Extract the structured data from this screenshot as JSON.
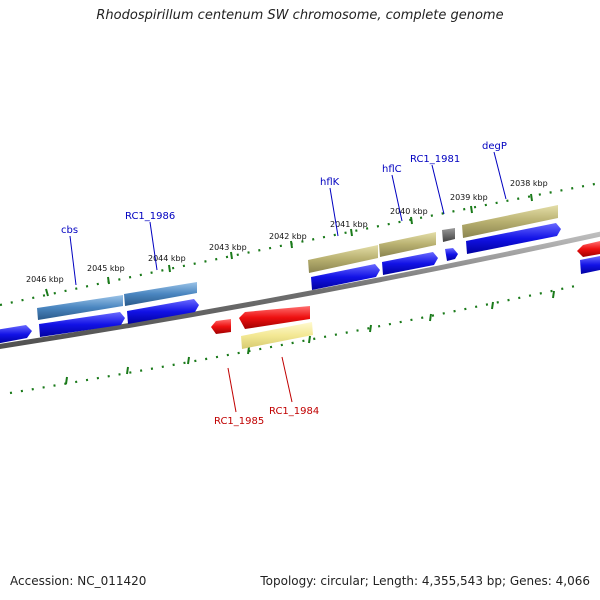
{
  "title": "Rhodospirillum centenum SW chromosome, complete genome",
  "footer": {
    "accession": "Accession: NC_011420",
    "topology": "Topology: circular; Length: 4,355,543 bp; Genes: 4,066"
  },
  "colors": {
    "backbone": "#808080",
    "tick": "#1a7a1a",
    "cds_forward": "#1010e0",
    "cds_reverse": "#e81010",
    "gene_steelblue": "#4a86c0",
    "gene_olive": "#b8b070",
    "gene_paleyellow": "#f0e68c",
    "gene_gray": "#606060",
    "label_forward": "#0000c0",
    "label_reverse": "#c00000"
  },
  "kbp_labels": [
    "2046 kbp",
    "2045 kbp",
    "2044 kbp",
    "2043 kbp",
    "2042 kbp",
    "2041 kbp",
    "2040 kbp",
    "2039 kbp",
    "2038 kbp"
  ],
  "gene_labels": {
    "cbs": "cbs",
    "rc1_1986": "RC1_1986",
    "hflk": "hflK",
    "hflc": "hflC",
    "rc1_1981": "RC1_1981",
    "degp": "degP",
    "rc1_1985": "RC1_1985",
    "rc1_1984": "RC1_1984"
  }
}
